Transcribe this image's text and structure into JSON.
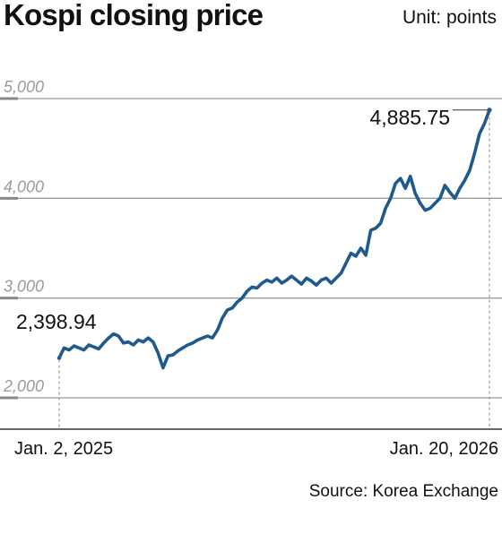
{
  "header": {
    "title": "Kospi closing price",
    "unit": "Unit: points"
  },
  "footer": {
    "source": "Source: Korea Exchange"
  },
  "colors": {
    "line": "#1f5a8e",
    "grid": "#9a9a9a",
    "tick": "#888888",
    "text": "#111111"
  },
  "chart_data": {
    "type": "line",
    "title": "Kospi closing price",
    "unit": "Unit: points",
    "xlabel": "",
    "ylabel": "",
    "yticks": [
      "5,000",
      "4,000",
      "3,000",
      "2,000"
    ],
    "ytick_values": [
      5000,
      4000,
      3000,
      2000
    ],
    "ylim": [
      1700,
      5250
    ],
    "x_range_labels": [
      "Jan. 2, 2025",
      "Jan. 20, 2026"
    ],
    "grid": true,
    "annotations": [
      {
        "label": "2,398.94",
        "date": "Jan. 2, 2025",
        "value": 2398.94
      },
      {
        "label": "4,885.75",
        "date": "Jan. 20, 2026",
        "value": 4885.75
      }
    ],
    "series": [
      {
        "values": [
          2398.94,
          2500,
          2480,
          2520,
          2500,
          2480,
          2530,
          2510,
          2490,
          2550,
          2600,
          2640,
          2620,
          2550,
          2560,
          2530,
          2580,
          2560,
          2600,
          2560,
          2450,
          2300,
          2420,
          2430,
          2470,
          2500,
          2530,
          2550,
          2580,
          2600,
          2620,
          2600,
          2680,
          2800,
          2880,
          2900,
          2960,
          3000,
          3070,
          3110,
          3100,
          3150,
          3180,
          3160,
          3200,
          3150,
          3180,
          3220,
          3180,
          3140,
          3200,
          3170,
          3130,
          3180,
          3200,
          3150,
          3200,
          3250,
          3350,
          3450,
          3420,
          3500,
          3430,
          3680,
          3700,
          3750,
          3900,
          4000,
          4150,
          4200,
          4100,
          4220,
          4050,
          3950,
          3880,
          3900,
          3950,
          4000,
          4130,
          4060,
          4000,
          4100,
          4180,
          4280,
          4450,
          4650,
          4750,
          4885.75
        ]
      }
    ]
  }
}
